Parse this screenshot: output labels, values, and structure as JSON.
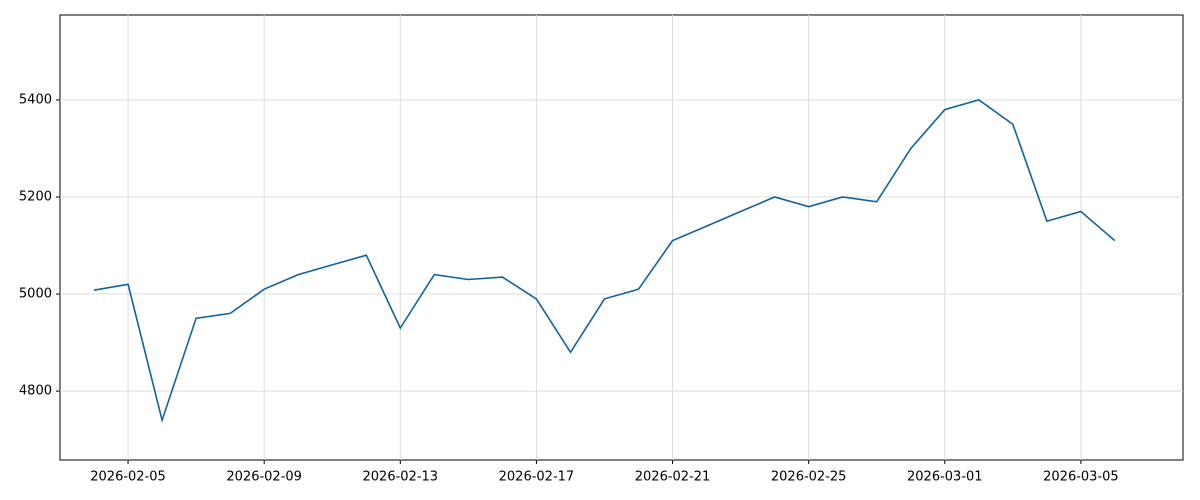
{
  "chart_data": {
    "type": "line",
    "x": [
      "2026-02-04",
      "2026-02-05",
      "2026-02-06",
      "2026-02-07",
      "2026-02-08",
      "2026-02-09",
      "2026-02-10",
      "2026-02-11",
      "2026-02-12",
      "2026-02-13",
      "2026-02-14",
      "2026-02-15",
      "2026-02-16",
      "2026-02-17",
      "2026-02-18",
      "2026-02-19",
      "2026-02-20",
      "2026-02-21",
      "2026-02-22",
      "2026-02-23",
      "2026-02-24",
      "2026-02-25",
      "2026-02-26",
      "2026-02-27",
      "2026-02-28",
      "2026-03-01",
      "2026-03-02",
      "2026-03-03",
      "2026-03-04",
      "2026-03-05",
      "2026-03-06"
    ],
    "series": [
      {
        "color": "#0f63a0",
        "values": [
          5008,
          5020,
          4740,
          4950,
          4960,
          5010,
          5040,
          5060,
          5080,
          4930,
          5040,
          5030,
          5035,
          4990,
          4880,
          4990,
          5010,
          5110,
          5140,
          5170,
          5200,
          5180,
          5200,
          5190,
          5300,
          5380,
          5400,
          5350,
          5150,
          5170,
          5110
        ]
      }
    ],
    "xlim": [
      "2026-02-03",
      "2026-03-08"
    ],
    "xticks": [
      "2026-02-05",
      "2026-02-09",
      "2026-02-13",
      "2026-02-17",
      "2026-02-21",
      "2026-02-25",
      "2026-03-01",
      "2026-03-05"
    ],
    "ylim": [
      4658,
      5575
    ],
    "yticks": [
      4800,
      5000,
      5200,
      5400
    ],
    "grid": true
  }
}
